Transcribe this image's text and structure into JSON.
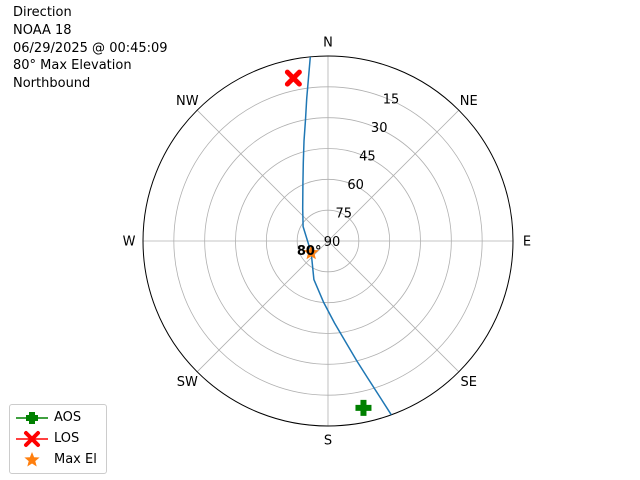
{
  "info": {
    "lines": [
      "Direction",
      "NOAA 18",
      "06/29/2025 @ 00:45:09",
      "80° Max Elevation",
      "Northbound"
    ]
  },
  "chart_data": {
    "type": "polar",
    "projection": "azimuth-elevation",
    "direction_labels": [
      {
        "label": "N",
        "azimuth": 0
      },
      {
        "label": "NE",
        "azimuth": 45
      },
      {
        "label": "E",
        "azimuth": 90
      },
      {
        "label": "SE",
        "azimuth": 135
      },
      {
        "label": "S",
        "azimuth": 180
      },
      {
        "label": "SW",
        "azimuth": 225
      },
      {
        "label": "W",
        "azimuth": 270
      },
      {
        "label": "NW",
        "azimuth": 315
      }
    ],
    "elevation_ticks": [
      15,
      30,
      45,
      60,
      75,
      90
    ],
    "elevation_tick_azimuth": 22.5,
    "grid": true,
    "series": [
      {
        "name": "pass-track",
        "color": "#1f77b4",
        "points": [
          {
            "az": 160.0,
            "el": 0
          },
          {
            "az": 161.6,
            "el": 10
          },
          {
            "az": 163.7,
            "el": 20
          },
          {
            "az": 166.5,
            "el": 30
          },
          {
            "az": 170.0,
            "el": 40
          },
          {
            "az": 175.5,
            "el": 50
          },
          {
            "az": 184.0,
            "el": 60
          },
          {
            "az": 200.0,
            "el": 70
          },
          {
            "az": 235.0,
            "el": 80
          },
          {
            "az": 300.0,
            "el": 76
          },
          {
            "az": 322.0,
            "el": 70
          },
          {
            "az": 336.0,
            "el": 60
          },
          {
            "az": 342.5,
            "el": 50
          },
          {
            "az": 346.5,
            "el": 40
          },
          {
            "az": 349.5,
            "el": 30
          },
          {
            "az": 351.5,
            "el": 20
          },
          {
            "az": 353.2,
            "el": 10
          },
          {
            "az": 354.5,
            "el": 0
          }
        ]
      }
    ],
    "markers": {
      "aos": {
        "legend": "AOS",
        "az": 168.0,
        "el": 7,
        "color": "#008000"
      },
      "los": {
        "legend": "LOS",
        "az": 348.0,
        "el": 9,
        "color": "#ff0000"
      },
      "max_el": {
        "legend": "Max El",
        "az": 235.0,
        "el": 80,
        "color": "#ff7f0e",
        "label": "80°"
      }
    },
    "legend_position": "lower-left"
  }
}
